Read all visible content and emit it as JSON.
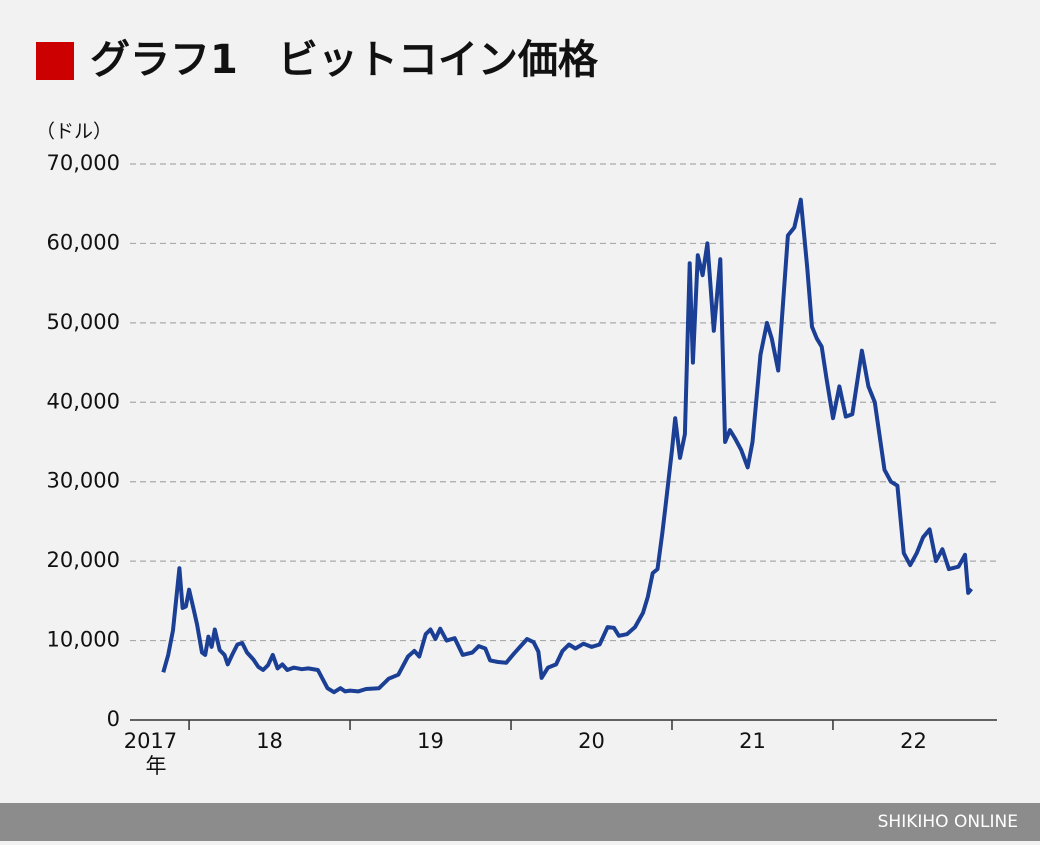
{
  "chart_data": {
    "type": "line",
    "title": "グラフ1　ビットコイン価格",
    "y_unit": "（ドル）",
    "source": "SHIKIHO ONLINE",
    "x_unit": "年",
    "color": "#1b3f94",
    "grid": true,
    "ylim": [
      0,
      70000
    ],
    "yticks": [
      0,
      {
        "value": 10000,
        "label": "10,000"
      },
      {
        "value": 20000,
        "label": "20,000"
      },
      {
        "value": 30000,
        "label": "30,000"
      },
      {
        "value": 40000,
        "label": "40,000"
      },
      {
        "value": 50000,
        "label": "50,000"
      },
      {
        "value": 60000,
        "label": "60,000"
      },
      {
        "value": 70000,
        "label": "70,000"
      }
    ],
    "xlim": [
      2017.633,
      2023.019
    ],
    "xticks": [
      {
        "value": 2017.76,
        "label": "2017"
      },
      {
        "value": 2018.5,
        "label": "18"
      },
      {
        "value": 2019.5,
        "label": "19"
      },
      {
        "value": 2020.5,
        "label": "20"
      },
      {
        "value": 2021.5,
        "label": "21"
      },
      {
        "value": 2022.5,
        "label": "22"
      }
    ],
    "year_lines": [
      2018,
      2019,
      2020,
      2021,
      2022
    ],
    "x": [
      2017.84,
      2017.87,
      2017.9,
      2017.94,
      2017.96,
      2017.98,
      2018.0,
      2018.03,
      2018.05,
      2018.08,
      2018.1,
      2018.12,
      2018.14,
      2018.16,
      2018.19,
      2018.22,
      2018.24,
      2018.27,
      2018.3,
      2018.33,
      2018.36,
      2018.4,
      2018.43,
      2018.46,
      2018.49,
      2018.52,
      2018.55,
      2018.58,
      2018.61,
      2018.65,
      2018.7,
      2018.74,
      2018.8,
      2018.86,
      2018.9,
      2018.94,
      2018.97,
      2019.0,
      2019.05,
      2019.1,
      2019.18,
      2019.24,
      2019.3,
      2019.36,
      2019.4,
      2019.43,
      2019.47,
      2019.5,
      2019.53,
      2019.56,
      2019.6,
      2019.65,
      2019.7,
      2019.76,
      2019.8,
      2019.84,
      2019.87,
      2019.92,
      2019.97,
      2020.02,
      2020.06,
      2020.1,
      2020.14,
      2020.17,
      2020.19,
      2020.23,
      2020.28,
      2020.32,
      2020.36,
      2020.4,
      2020.45,
      2020.5,
      2020.55,
      2020.6,
      2020.64,
      2020.67,
      2020.72,
      2020.77,
      2020.82,
      2020.85,
      2020.88,
      2020.91,
      2020.94,
      2020.96,
      2021.0,
      2021.02,
      2021.05,
      2021.08,
      2021.11,
      2021.13,
      2021.16,
      2021.19,
      2021.22,
      2021.26,
      2021.3,
      2021.33,
      2021.36,
      2021.39,
      2021.43,
      2021.47,
      2021.5,
      2021.55,
      2021.59,
      2021.62,
      2021.66,
      2021.72,
      2021.76,
      2021.8,
      2021.84,
      2021.87,
      2021.9,
      2021.93,
      2021.96,
      2022.0,
      2022.04,
      2022.08,
      2022.12,
      2022.18,
      2022.22,
      2022.26,
      2022.32,
      2022.36,
      2022.4,
      2022.44,
      2022.48,
      2022.52,
      2022.56,
      2022.6,
      2022.64,
      2022.68,
      2022.72,
      2022.78,
      2022.82,
      2022.84,
      2022.86
    ],
    "series": [
      {
        "name": "ビットコイン",
        "values": [
          6000,
          8200,
          11300,
          19100,
          14100,
          14300,
          16400,
          13800,
          12000,
          8500,
          8200,
          10500,
          9200,
          11400,
          8800,
          8200,
          7000,
          8300,
          9500,
          9700,
          8500,
          7600,
          6700,
          6300,
          6900,
          8200,
          6500,
          7000,
          6300,
          6600,
          6400,
          6500,
          6300,
          4000,
          3500,
          4000,
          3600,
          3700,
          3600,
          3900,
          4000,
          5200,
          5700,
          8000,
          8700,
          8000,
          10800,
          11400,
          10200,
          11500,
          10000,
          10300,
          8200,
          8500,
          9300,
          9000,
          7500,
          7300,
          7200,
          8400,
          9300,
          10200,
          9800,
          8600,
          5300,
          6600,
          7000,
          8700,
          9500,
          9000,
          9600,
          9200,
          9500,
          11700,
          11600,
          10600,
          10800,
          11700,
          13500,
          15500,
          18500,
          19000,
          23500,
          27000,
          34000,
          38000,
          33000,
          36000,
          57500,
          45000,
          58500,
          56000,
          60000,
          49000,
          58000,
          35000,
          36500,
          35500,
          34000,
          31800,
          35000,
          46000,
          50000,
          48000,
          44000,
          61000,
          62000,
          65500,
          57000,
          49500,
          48000,
          47000,
          43000,
          38000,
          42000,
          38200,
          38500,
          46500,
          42000,
          40000,
          31500,
          30000,
          29500,
          21000,
          19500,
          21000,
          23000,
          24000,
          20000,
          21500,
          19000,
          19300,
          20800,
          16000,
          16500
        ]
      }
    ]
  }
}
